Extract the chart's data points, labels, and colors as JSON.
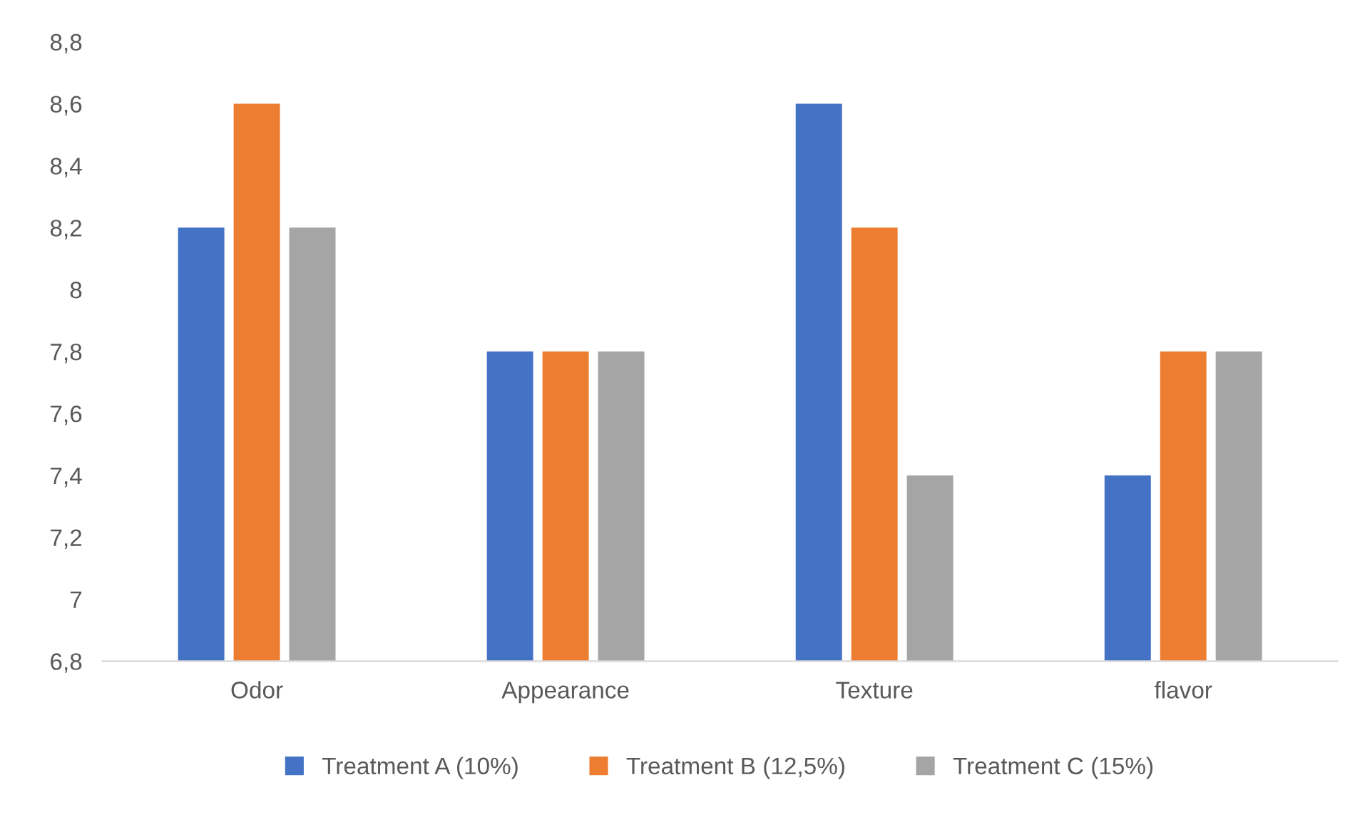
{
  "chart_data": {
    "type": "bar",
    "categories": [
      "Odor",
      "Appearance",
      "Texture",
      "flavor"
    ],
    "series": [
      {
        "name": "Treatment A (10%)",
        "color": "#4472c4",
        "values": [
          8.2,
          7.8,
          8.6,
          7.4
        ]
      },
      {
        "name": "Treatment B (12,5%)",
        "color": "#ed7d31",
        "values": [
          8.6,
          7.8,
          8.2,
          7.8
        ]
      },
      {
        "name": "Treatment C (15%)",
        "color": "#a5a5a5",
        "values": [
          8.2,
          7.8,
          7.4,
          7.8
        ]
      }
    ],
    "ylim": [
      6.8,
      8.8
    ],
    "yticks": [
      {
        "value": 6.8,
        "label": "6,8"
      },
      7,
      {
        "value": 7.2,
        "label": "7,2"
      },
      {
        "value": 7.4,
        "label": "7,4"
      },
      {
        "value": 7.6,
        "label": "7,6"
      },
      {
        "value": 7.8,
        "label": "7,8"
      },
      8,
      {
        "value": 8.2,
        "label": "8,2"
      },
      {
        "value": 8.4,
        "label": "8,4"
      },
      {
        "value": 8.6,
        "label": "8,6"
      },
      {
        "value": 8.8,
        "label": "8,8"
      }
    ],
    "grid": false,
    "legend": "bottom"
  }
}
